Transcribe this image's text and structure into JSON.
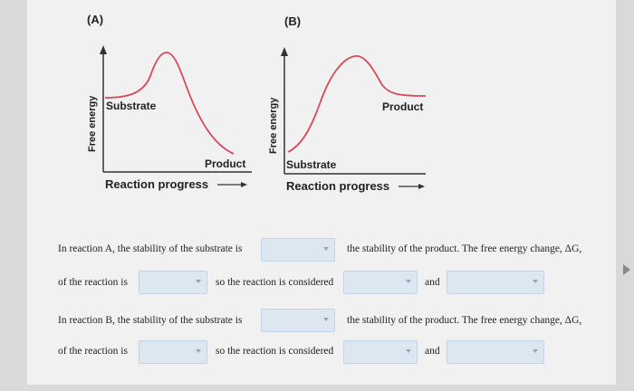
{
  "diagram_a": {
    "label": "(A)",
    "y_axis": "Free energy",
    "x_axis": "Reaction progress",
    "substrate": "Substrate",
    "product": "Product"
  },
  "diagram_b": {
    "label": "(B)",
    "y_axis": "Free energy",
    "x_axis": "Reaction progress",
    "substrate": "Substrate",
    "product": "Product"
  },
  "questions": {
    "a_line1_pre": "In reaction A, the stability of the substrate is",
    "a_line1_post": "the stability of the product. The free energy change, ΔG,",
    "a_line2_pre": "of the reaction is",
    "a_line2_mid": "so the reaction is considered",
    "a_line2_and": "and",
    "b_line1_pre": "In reaction B, the stability of the substrate is",
    "b_line1_post": "the stability of the product. The free energy change, ΔG,",
    "b_line2_pre": "of the reaction is",
    "b_line2_mid": "so the reaction is considered",
    "b_line2_and": "and"
  },
  "dropdowns": {
    "a_stability": "",
    "a_delta_g": "",
    "a_considered_1": "",
    "a_considered_2": "",
    "b_stability": "",
    "b_delta_g": "",
    "b_considered_1": "",
    "b_considered_2": ""
  },
  "colors": {
    "curve": "#d9485a",
    "axis": "#333333",
    "dropdown_bg": "#dde7f2"
  }
}
